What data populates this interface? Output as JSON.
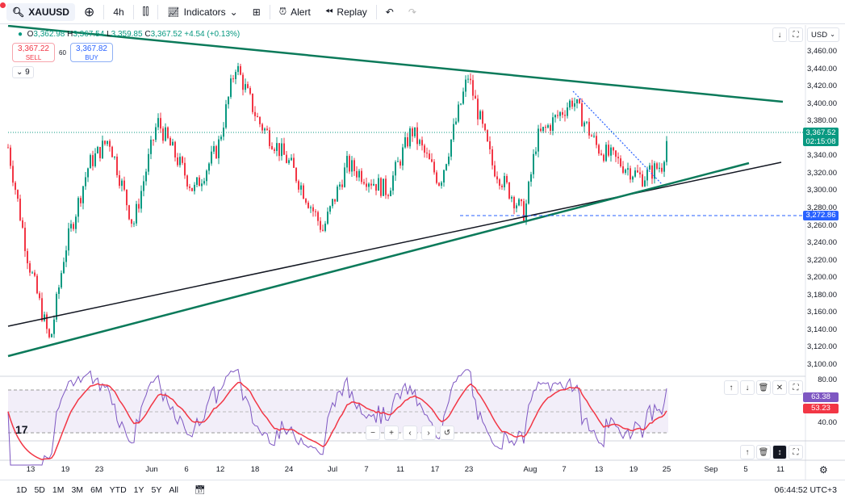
{
  "toolbar": {
    "symbol": "XAUUSD",
    "interval": "4h",
    "indicators": "Indicators",
    "alert": "Alert",
    "replay": "Replay"
  },
  "legend": {
    "o_label": "O",
    "o": "3,362.98",
    "h_label": "H",
    "h": "3,367.54",
    "l_label": "L",
    "l": "3,359.85",
    "c_label": "C",
    "c": "3,367.52",
    "change": "+4.54 (+0.13%)"
  },
  "trade": {
    "sell_price": "3,367.22",
    "sell": "SELL",
    "spread": "60",
    "buy_price": "3,367.82",
    "buy": "BUY"
  },
  "indicator_count": "9",
  "currency": "USD",
  "price_axis": [
    "3,460.00",
    "3,440.00",
    "3,420.00",
    "3,400.00",
    "3,380.00",
    "3,340.00",
    "3,320.00",
    "3,300.00",
    "3,280.00",
    "3,260.00",
    "3,240.00",
    "3,220.00",
    "3,200.00",
    "3,180.00",
    "3,160.00",
    "3,140.00",
    "3,120.00",
    "3,100.00"
  ],
  "current_price": "3,367.52",
  "countdown": "02:15:08",
  "level_price": "3,272.86",
  "rsi": {
    "axis": [
      "80.00",
      "40.00"
    ],
    "rsi_value": "63.38",
    "ma_value": "53.23",
    "colors": {
      "rsi": "#7e57c2",
      "ma": "#f23645"
    }
  },
  "time_axis": [
    "13",
    "19",
    "23",
    "Jun",
    "6",
    "12",
    "18",
    "24",
    "Jul",
    "7",
    "11",
    "17",
    "23",
    "Aug",
    "7",
    "13",
    "19",
    "25",
    "Sep",
    "5",
    "11"
  ],
  "ranges": [
    "1D",
    "5D",
    "1M",
    "3M",
    "6M",
    "YTD",
    "1Y",
    "5Y",
    "All"
  ],
  "clock": "06:44:52 UTC+3",
  "chart_data": {
    "type": "candlestick",
    "symbol": "XAUUSD",
    "interval": "4h",
    "ylim": [
      3090,
      3470
    ],
    "price_anchors": [
      3350,
      3220,
      3125,
      3230,
      3330,
      3360,
      3260,
      3380,
      3300,
      3350,
      3445,
      3380,
      3330,
      3255,
      3330,
      3300,
      3370,
      3310,
      3432,
      3330,
      3272,
      3360,
      3405,
      3350,
      3315,
      3330,
      3367
    ],
    "colors": {
      "up": "#089981",
      "down": "#f23645"
    }
  }
}
